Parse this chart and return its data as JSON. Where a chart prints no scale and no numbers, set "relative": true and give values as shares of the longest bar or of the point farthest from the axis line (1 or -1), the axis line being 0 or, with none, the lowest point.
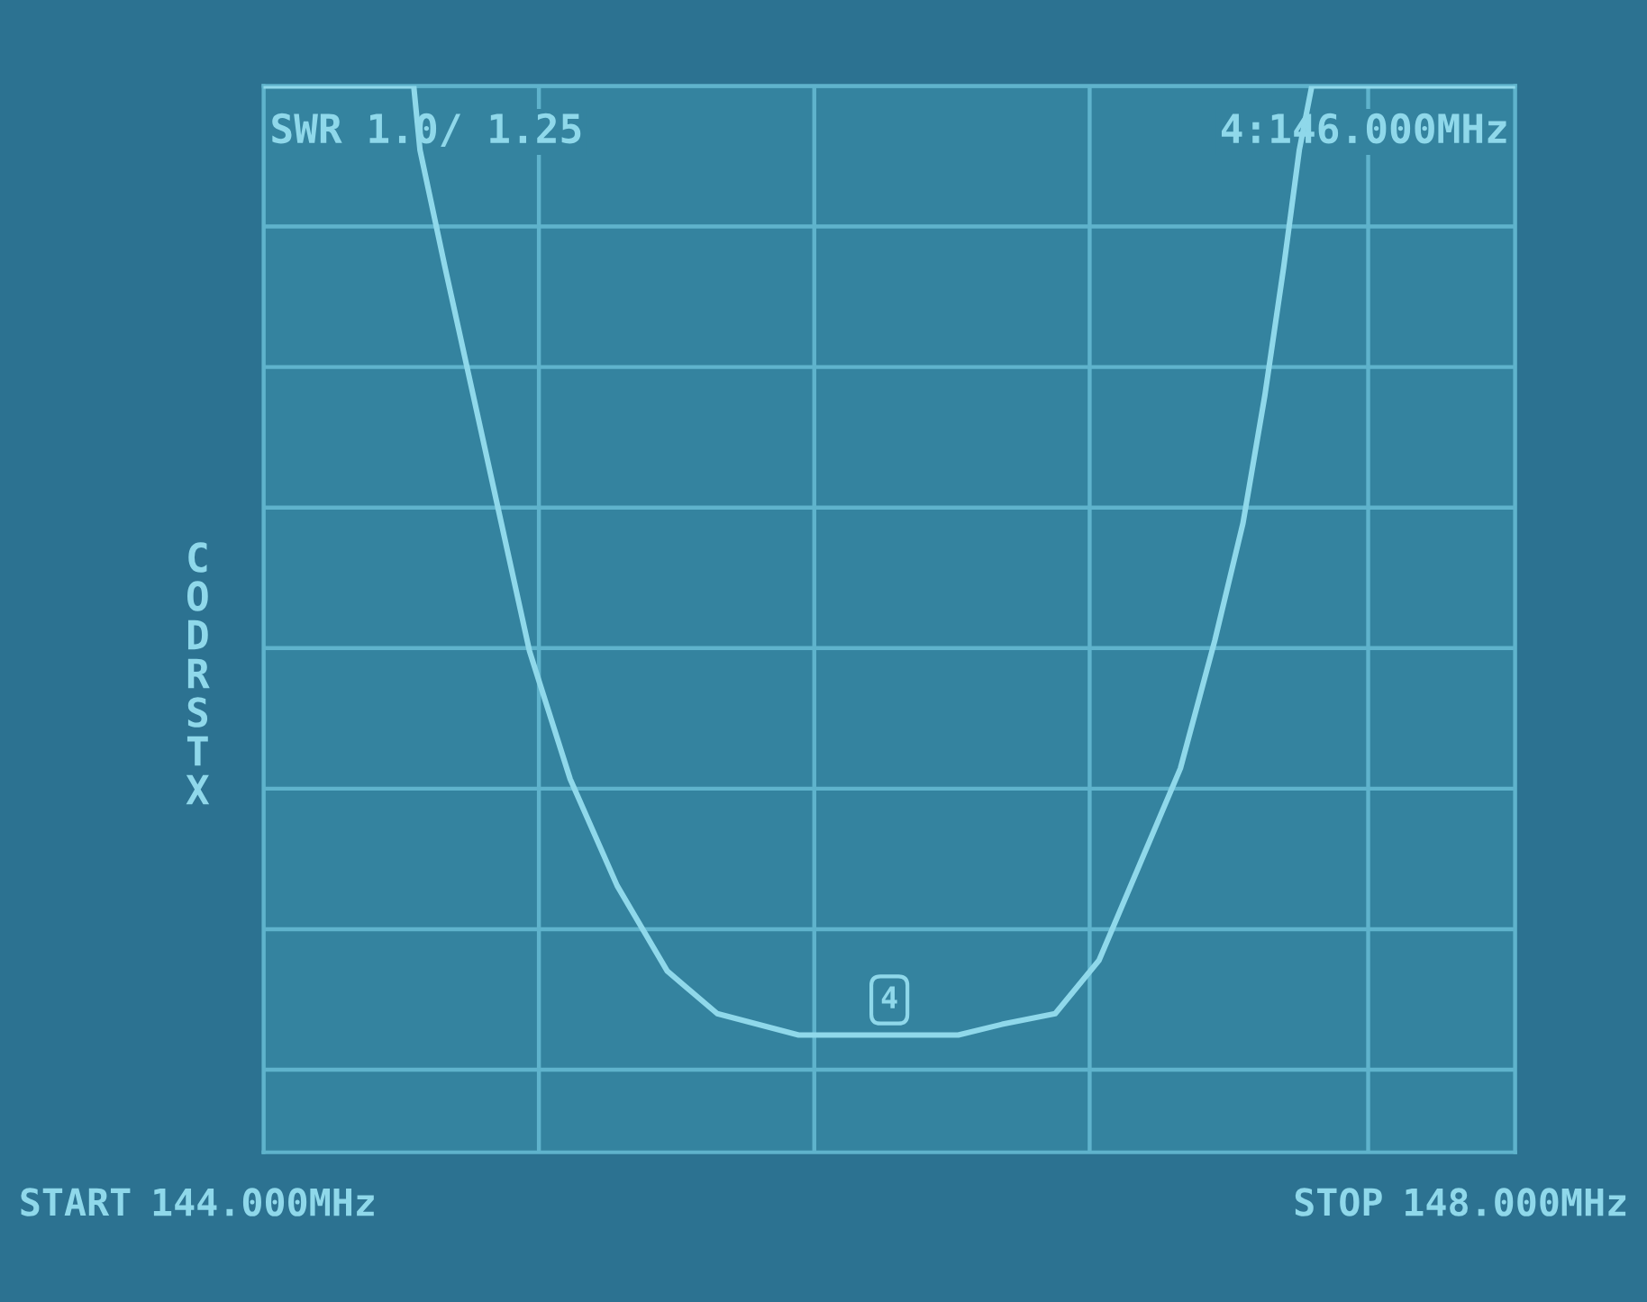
{
  "chart_data": {
    "type": "line",
    "title": "SWR 1.0/ 1.25",
    "ylabel": "CODRSTX",
    "relative": true,
    "x": [
      144.0,
      144.48,
      144.5,
      144.58,
      144.67,
      144.76,
      144.85,
      144.98,
      145.13,
      145.29,
      145.45,
      145.71,
      145.96,
      146.22,
      146.36,
      146.53,
      146.67,
      146.8,
      146.93,
      147.04,
      147.13,
      147.2,
      147.26,
      147.31,
      147.35,
      148.0
    ],
    "series": [
      {
        "color": "#8fd8ea",
        "values": [
          1.0,
          1.0,
          0.94,
          0.83,
          0.71,
          0.59,
          0.47,
          0.35,
          0.25,
          0.17,
          0.13,
          0.11,
          0.11,
          0.11,
          0.12,
          0.13,
          0.18,
          0.27,
          0.36,
          0.48,
          0.59,
          0.71,
          0.83,
          0.94,
          1.0,
          1.0
        ]
      }
    ],
    "xlim": [
      144,
      148
    ],
    "xticks": [
      {
        "value": 144,
        "label": "144.000MHz"
      },
      {
        "value": 144.88,
        "label": null
      },
      {
        "value": 145.76,
        "label": null
      },
      {
        "value": 146.64,
        "label": null
      },
      {
        "value": 147.53,
        "label": null
      },
      {
        "value": 148,
        "label": "148.000MHz"
      }
    ],
    "annotations": [
      "4:146.000MHz",
      {
        "text": "4",
        "x": 146,
        "y": 0.11
      },
      "START",
      "STOP"
    ],
    "grid": true,
    "marker": "none",
    "line_style": "solid"
  }
}
